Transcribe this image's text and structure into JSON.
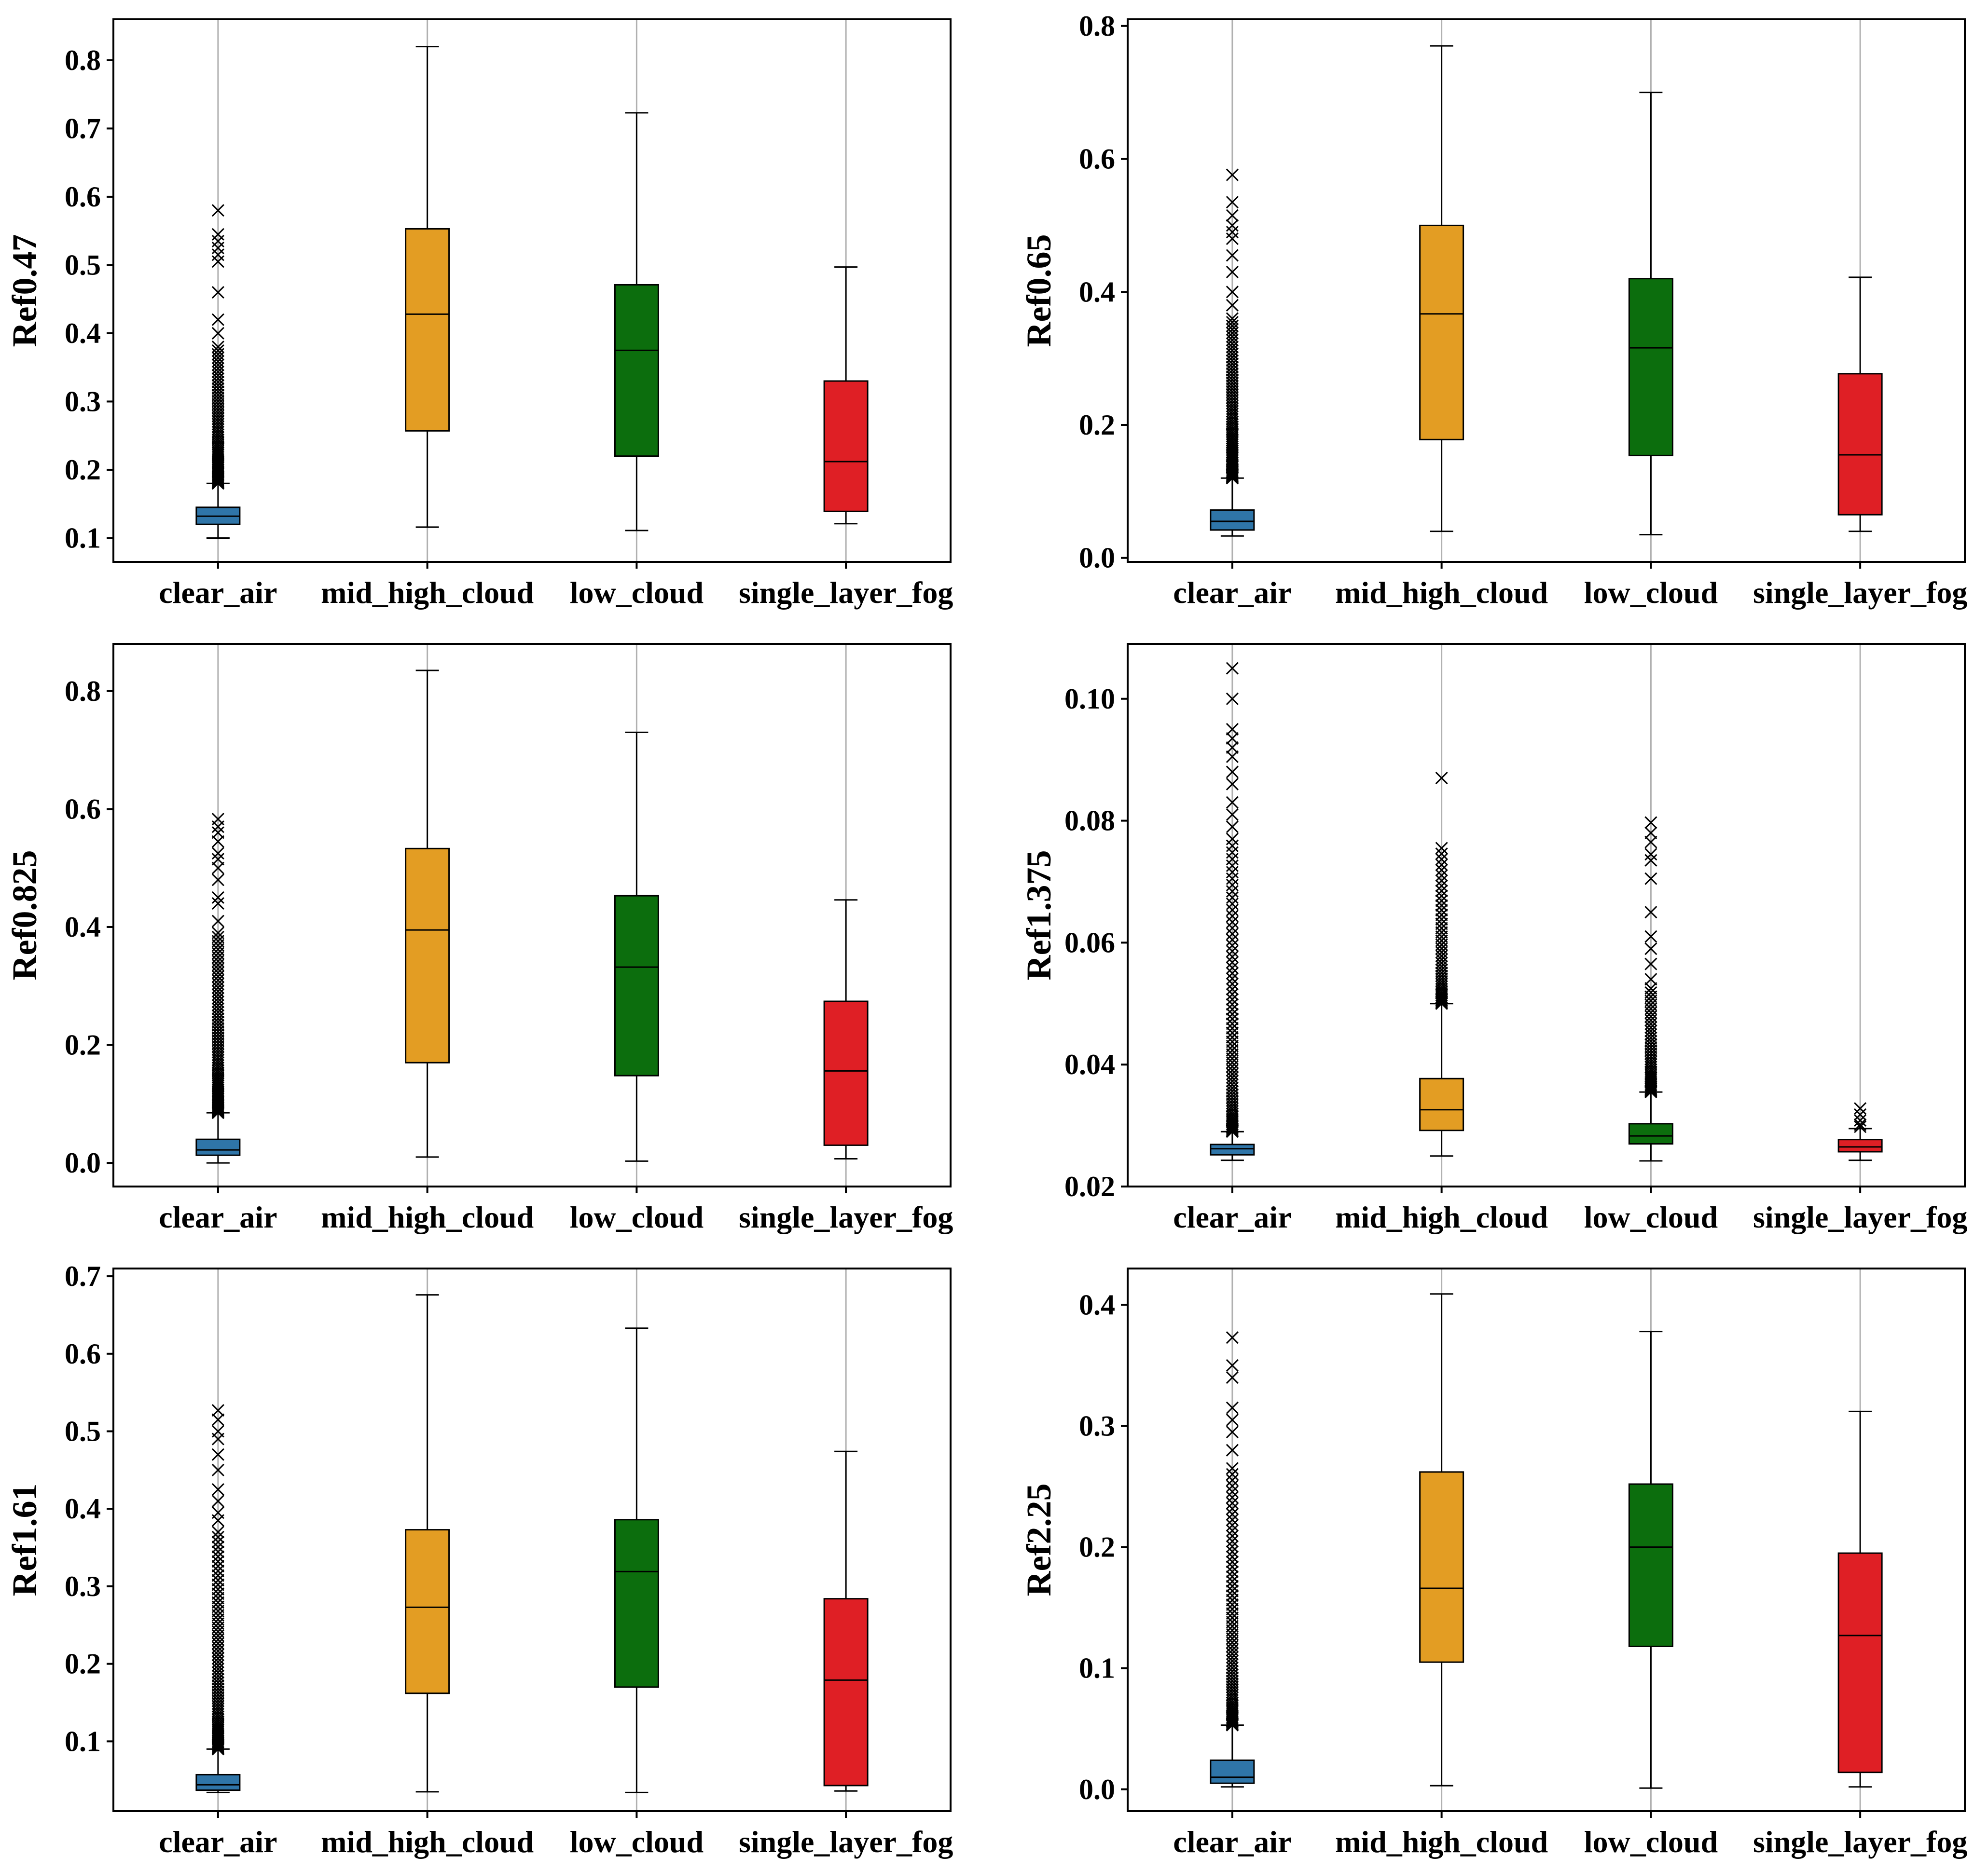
{
  "colors": {
    "clear_air": "#2f75a8",
    "mid_high_cloud": "#e39d23",
    "low_cloud": "#0c6e0d",
    "single_layer_fog": "#df1f25",
    "axis": "#000000",
    "gridline": "#b0b0b0",
    "flier": "#000000"
  },
  "chart_data": [
    {
      "type": "box",
      "ylabel": "Ref0.47",
      "categories": [
        "clear_air",
        "mid_high_cloud",
        "low_cloud",
        "single_layer_fog"
      ],
      "ylim": [
        0.065,
        0.86
      ],
      "yticks": [
        0.1,
        0.2,
        0.3,
        0.4,
        0.5,
        0.6,
        0.7,
        0.8
      ],
      "ytick_labels": [
        "0.1",
        "0.2",
        "0.3",
        "0.4",
        "0.5",
        "0.6",
        "0.7",
        "0.8"
      ],
      "boxes": [
        {
          "category": "clear_air",
          "whisker_low": 0.1,
          "q1": 0.12,
          "median": 0.132,
          "q3": 0.145,
          "whisker_high": 0.18
        },
        {
          "category": "mid_high_cloud",
          "whisker_low": 0.116,
          "q1": 0.257,
          "median": 0.428,
          "q3": 0.553,
          "whisker_high": 0.82
        },
        {
          "category": "low_cloud",
          "whisker_low": 0.111,
          "q1": 0.22,
          "median": 0.375,
          "q3": 0.471,
          "whisker_high": 0.723
        },
        {
          "category": "single_layer_fog",
          "whisker_low": 0.121,
          "q1": 0.139,
          "median": 0.212,
          "q3": 0.33,
          "whisker_high": 0.497
        }
      ],
      "outliers": [
        {
          "category": "clear_air",
          "from": 0.18,
          "to": 0.38,
          "count": 60,
          "extra": [
            0.4,
            0.42,
            0.46,
            0.505,
            0.515,
            0.525,
            0.535,
            0.545,
            0.58
          ]
        }
      ]
    },
    {
      "type": "box",
      "ylabel": "Ref0.65",
      "categories": [
        "clear_air",
        "mid_high_cloud",
        "low_cloud",
        "single_layer_fog"
      ],
      "ylim": [
        -0.006,
        0.81
      ],
      "yticks": [
        0.0,
        0.2,
        0.4,
        0.6,
        0.8
      ],
      "ytick_labels": [
        "0.0",
        "0.2",
        "0.4",
        "0.6",
        "0.8"
      ],
      "boxes": [
        {
          "category": "clear_air",
          "whisker_low": 0.033,
          "q1": 0.042,
          "median": 0.055,
          "q3": 0.072,
          "whisker_high": 0.12
        },
        {
          "category": "mid_high_cloud",
          "whisker_low": 0.04,
          "q1": 0.178,
          "median": 0.367,
          "q3": 0.5,
          "whisker_high": 0.77
        },
        {
          "category": "low_cloud",
          "whisker_low": 0.035,
          "q1": 0.154,
          "median": 0.316,
          "q3": 0.42,
          "whisker_high": 0.7
        },
        {
          "category": "single_layer_fog",
          "whisker_low": 0.04,
          "q1": 0.065,
          "median": 0.155,
          "q3": 0.277,
          "whisker_high": 0.422
        }
      ],
      "outliers": [
        {
          "category": "clear_air",
          "from": 0.12,
          "to": 0.36,
          "count": 70,
          "extra": [
            0.38,
            0.4,
            0.43,
            0.455,
            0.48,
            0.49,
            0.5,
            0.515,
            0.535,
            0.576
          ]
        }
      ]
    },
    {
      "type": "box",
      "ylabel": "Ref0.825",
      "categories": [
        "clear_air",
        "mid_high_cloud",
        "low_cloud",
        "single_layer_fog"
      ],
      "ylim": [
        -0.04,
        0.88
      ],
      "yticks": [
        0.0,
        0.2,
        0.4,
        0.6,
        0.8
      ],
      "ytick_labels": [
        "0.0",
        "0.2",
        "0.4",
        "0.6",
        "0.8"
      ],
      "boxes": [
        {
          "category": "clear_air",
          "whisker_low": 0.0,
          "q1": 0.013,
          "median": 0.022,
          "q3": 0.04,
          "whisker_high": 0.085
        },
        {
          "category": "mid_high_cloud",
          "whisker_low": 0.01,
          "q1": 0.17,
          "median": 0.395,
          "q3": 0.533,
          "whisker_high": 0.835
        },
        {
          "category": "low_cloud",
          "whisker_low": 0.003,
          "q1": 0.148,
          "median": 0.332,
          "q3": 0.453,
          "whisker_high": 0.73
        },
        {
          "category": "single_layer_fog",
          "whisker_low": 0.007,
          "q1": 0.03,
          "median": 0.156,
          "q3": 0.274,
          "whisker_high": 0.446
        }
      ],
      "outliers": [
        {
          "category": "clear_air",
          "from": 0.085,
          "to": 0.39,
          "count": 70,
          "extra": [
            0.41,
            0.44,
            0.45,
            0.48,
            0.5,
            0.515,
            0.525,
            0.545,
            0.56,
            0.57,
            0.583
          ]
        }
      ]
    },
    {
      "type": "box",
      "ylabel": "Ref1.375",
      "categories": [
        "clear_air",
        "mid_high_cloud",
        "low_cloud",
        "single_layer_fog"
      ],
      "ylim": [
        0.02,
        0.109
      ],
      "yticks": [
        0.02,
        0.04,
        0.06,
        0.08,
        0.1
      ],
      "ytick_labels": [
        "0.02",
        "0.04",
        "0.06",
        "0.08",
        "0.10"
      ],
      "boxes": [
        {
          "category": "clear_air",
          "whisker_low": 0.0243,
          "q1": 0.0252,
          "median": 0.0262,
          "q3": 0.0269,
          "whisker_high": 0.029
        },
        {
          "category": "mid_high_cloud",
          "whisker_low": 0.025,
          "q1": 0.0292,
          "median": 0.0326,
          "q3": 0.0377,
          "whisker_high": 0.05
        },
        {
          "category": "low_cloud",
          "whisker_low": 0.0242,
          "q1": 0.027,
          "median": 0.0283,
          "q3": 0.0303,
          "whisker_high": 0.0355
        },
        {
          "category": "single_layer_fog",
          "whisker_low": 0.0243,
          "q1": 0.0257,
          "median": 0.0265,
          "q3": 0.0277,
          "whisker_high": 0.0295
        }
      ],
      "outliers": [
        {
          "category": "clear_air",
          "from": 0.029,
          "to": 0.077,
          "count": 70,
          "extra": [
            0.079,
            0.081,
            0.083,
            0.086,
            0.088,
            0.0905,
            0.092,
            0.0935,
            0.095,
            0.1,
            0.105
          ]
        },
        {
          "category": "mid_high_cloud",
          "from": 0.05,
          "to": 0.0755,
          "count": 45,
          "extra": [
            0.087
          ]
        },
        {
          "category": "low_cloud",
          "from": 0.0355,
          "to": 0.0525,
          "count": 40,
          "extra": [
            0.054,
            0.0565,
            0.059,
            0.061,
            0.065,
            0.0705,
            0.0735,
            0.0745,
            0.0765,
            0.078,
            0.0797
          ]
        },
        {
          "category": "single_layer_fog",
          "from": 0.0298,
          "to": 0.0318,
          "count": 4,
          "extra": [
            0.0328
          ]
        }
      ]
    },
    {
      "type": "box",
      "ylabel": "Ref1.61",
      "categories": [
        "clear_air",
        "mid_high_cloud",
        "low_cloud",
        "single_layer_fog"
      ],
      "ylim": [
        0.01,
        0.71
      ],
      "yticks": [
        0.1,
        0.2,
        0.3,
        0.4,
        0.5,
        0.6,
        0.7
      ],
      "ytick_labels": [
        "0.1",
        "0.2",
        "0.3",
        "0.4",
        "0.5",
        "0.6",
        "0.7"
      ],
      "boxes": [
        {
          "category": "clear_air",
          "whisker_low": 0.034,
          "q1": 0.037,
          "median": 0.044,
          "q3": 0.057,
          "whisker_high": 0.09
        },
        {
          "category": "mid_high_cloud",
          "whisker_low": 0.035,
          "q1": 0.162,
          "median": 0.273,
          "q3": 0.373,
          "whisker_high": 0.676
        },
        {
          "category": "low_cloud",
          "whisker_low": 0.034,
          "q1": 0.17,
          "median": 0.319,
          "q3": 0.386,
          "whisker_high": 0.633
        },
        {
          "category": "single_layer_fog",
          "whisker_low": 0.036,
          "q1": 0.043,
          "median": 0.179,
          "q3": 0.284,
          "whisker_high": 0.474
        }
      ],
      "outliers": [
        {
          "category": "clear_air",
          "from": 0.09,
          "to": 0.37,
          "count": 70,
          "extra": [
            0.385,
            0.395,
            0.41,
            0.425,
            0.45,
            0.47,
            0.49,
            0.5,
            0.515,
            0.527
          ]
        }
      ]
    },
    {
      "type": "box",
      "ylabel": "Ref2.25",
      "categories": [
        "clear_air",
        "mid_high_cloud",
        "low_cloud",
        "single_layer_fog"
      ],
      "ylim": [
        -0.018,
        0.43
      ],
      "yticks": [
        0.0,
        0.1,
        0.2,
        0.3,
        0.4
      ],
      "ytick_labels": [
        "0.0",
        "0.1",
        "0.2",
        "0.3",
        "0.4"
      ],
      "boxes": [
        {
          "category": "clear_air",
          "whisker_low": 0.002,
          "q1": 0.005,
          "median": 0.01,
          "q3": 0.024,
          "whisker_high": 0.053
        },
        {
          "category": "mid_high_cloud",
          "whisker_low": 0.003,
          "q1": 0.105,
          "median": 0.166,
          "q3": 0.262,
          "whisker_high": 0.409
        },
        {
          "category": "low_cloud",
          "whisker_low": 0.001,
          "q1": 0.118,
          "median": 0.2,
          "q3": 0.252,
          "whisker_high": 0.378
        },
        {
          "category": "single_layer_fog",
          "whisker_low": 0.002,
          "q1": 0.014,
          "median": 0.127,
          "q3": 0.195,
          "whisker_high": 0.312
        }
      ],
      "outliers": [
        {
          "category": "clear_air",
          "from": 0.053,
          "to": 0.265,
          "count": 70,
          "extra": [
            0.28,
            0.295,
            0.305,
            0.315,
            0.34,
            0.35,
            0.373
          ]
        }
      ]
    }
  ]
}
